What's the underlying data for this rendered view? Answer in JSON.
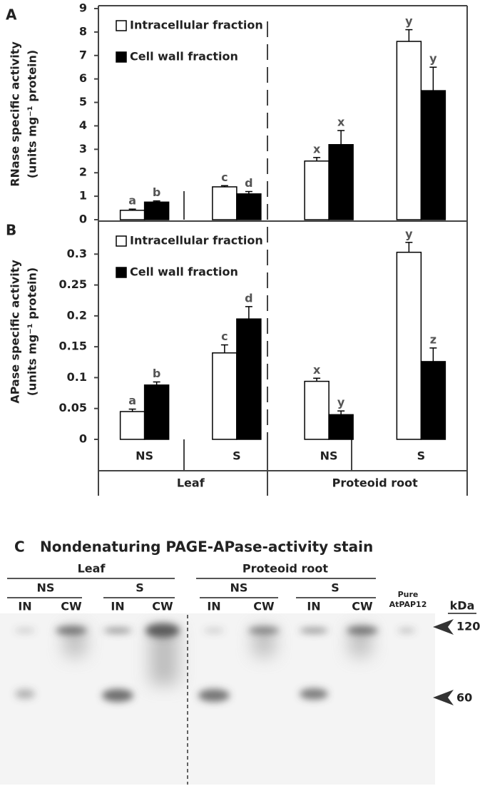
{
  "chart_data": [
    {
      "type": "bar",
      "panel_label": "A",
      "ylabel": [
        "RNase specific activity",
        "(units mg⁻¹ protein)"
      ],
      "ylim": [
        0,
        9
      ],
      "yticks": [
        0,
        1,
        2,
        3,
        4,
        5,
        6,
        7,
        8,
        9
      ],
      "series": [
        {
          "name": "Intracellular fraction",
          "color": "#ffffff",
          "values": [
            0.4,
            1.4,
            2.5,
            7.6
          ],
          "errors": [
            0.05,
            0.05,
            0.15,
            0.5
          ],
          "letters": [
            "a",
            "c",
            "x",
            "y"
          ]
        },
        {
          "name": "Cell wall fraction",
          "color": "#000000",
          "values": [
            0.75,
            1.1,
            3.2,
            5.5
          ],
          "errors": [
            0.05,
            0.1,
            0.6,
            1.0
          ],
          "letters": [
            "b",
            "d",
            "x",
            "y"
          ]
        }
      ]
    },
    {
      "type": "bar",
      "panel_label": "B",
      "ylabel": [
        "APase specific activity",
        "(units mg⁻¹ protein)"
      ],
      "ylim": [
        0,
        0.35
      ],
      "yticks": [
        0,
        0.05,
        0.1,
        0.15,
        0.2,
        0.25,
        0.3
      ],
      "categories": [
        "NS",
        "S",
        "NS",
        "S"
      ],
      "groups": [
        "Leaf",
        "Proteoid root"
      ],
      "series": [
        {
          "name": "Intracellular fraction",
          "color": "#ffffff",
          "values": [
            0.045,
            0.14,
            0.094,
            0.303
          ],
          "errors": [
            0.004,
            0.013,
            0.005,
            0.016
          ],
          "letters": [
            "a",
            "c",
            "x",
            "y"
          ]
        },
        {
          "name": "Cell wall fraction",
          "color": "#000000",
          "values": [
            0.088,
            0.195,
            0.04,
            0.126
          ],
          "errors": [
            0.005,
            0.02,
            0.006,
            0.022
          ],
          "letters": [
            "b",
            "d",
            "y",
            "z"
          ]
        }
      ]
    }
  ],
  "panel_c": {
    "label": "C",
    "title": "Nondenaturing PAGE-APase-activity stain",
    "tissues": [
      "Leaf",
      "Proteoid root"
    ],
    "treatments": [
      "NS",
      "S",
      "NS",
      "S"
    ],
    "lanes": [
      "IN",
      "CW",
      "IN",
      "CW",
      "IN",
      "CW",
      "IN",
      "CW"
    ],
    "standard": [
      "Pure",
      "AtPAP12"
    ],
    "unit": "kDa",
    "markers": [
      "120",
      "60"
    ]
  }
}
